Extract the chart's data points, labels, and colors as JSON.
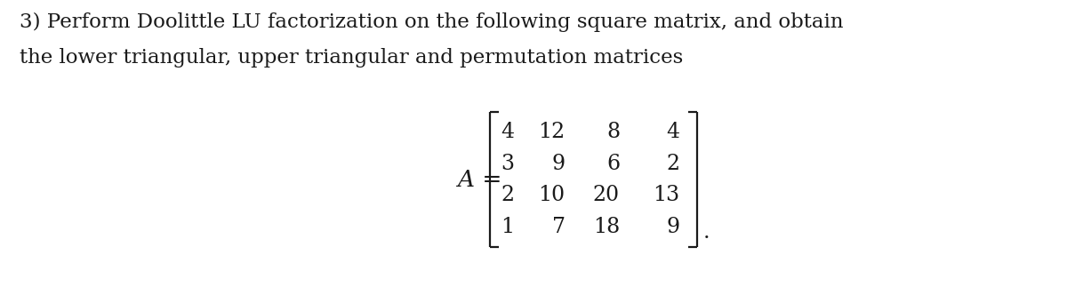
{
  "line1": "3) Perform Doolittle LU factorization on the following square matrix, and obtain",
  "line2": "the lower triangular, upper triangular and permutation matrices",
  "matrix": [
    [
      "4",
      "12",
      "8",
      "4"
    ],
    [
      "3",
      "9",
      "6",
      "2"
    ],
    [
      "2",
      "10",
      "20",
      "13"
    ],
    [
      "1",
      "7",
      "18",
      "9"
    ]
  ],
  "label_A": "A",
  "label_eq": " =",
  "period": ".",
  "bg_color": "#ffffff",
  "text_color": "#1a1a1a",
  "font_size_text": 16.5,
  "font_size_matrix": 17,
  "font_size_label": 19,
  "fig_width": 12.0,
  "fig_height": 3.32,
  "dpi": 100
}
